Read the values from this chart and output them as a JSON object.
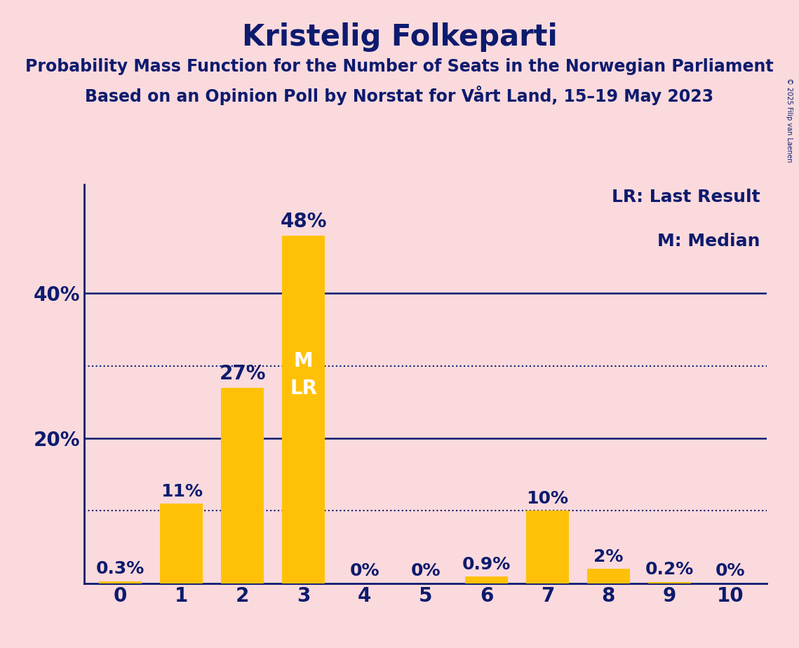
{
  "title": "Kristelig Folkeparti",
  "subtitle1": "Probability Mass Function for the Number of Seats in the Norwegian Parliament",
  "subtitle2": "Based on an Opinion Poll by Norstat for Vårt Land, 15–19 May 2023",
  "copyright": "© 2025 Filip van Laenen",
  "categories": [
    0,
    1,
    2,
    3,
    4,
    5,
    6,
    7,
    8,
    9,
    10
  ],
  "values": [
    0.3,
    11.0,
    27.0,
    48.0,
    0.0,
    0.0,
    0.9,
    10.0,
    2.0,
    0.2,
    0.0
  ],
  "value_labels": [
    "0.3%",
    "11%",
    "27%",
    "48%",
    "0%",
    "0%",
    "0.9%",
    "10%",
    "2%",
    "0.2%",
    "0%"
  ],
  "bar_color": "#FFC107",
  "background_color": "#FADADD",
  "text_color": "#0D1B6E",
  "median_seat": 3,
  "last_result_seat": 3,
  "yticks": [
    0,
    20,
    40
  ],
  "dotted_lines": [
    10.0,
    30.0
  ],
  "ylim": [
    0,
    55
  ],
  "legend_lr": "LR: Last Result",
  "legend_m": "M: Median",
  "title_fontsize": 30,
  "subtitle_fontsize": 17,
  "tick_fontsize": 20,
  "label_fontsize_large": 20,
  "label_fontsize_small": 18,
  "legend_fontsize": 18
}
